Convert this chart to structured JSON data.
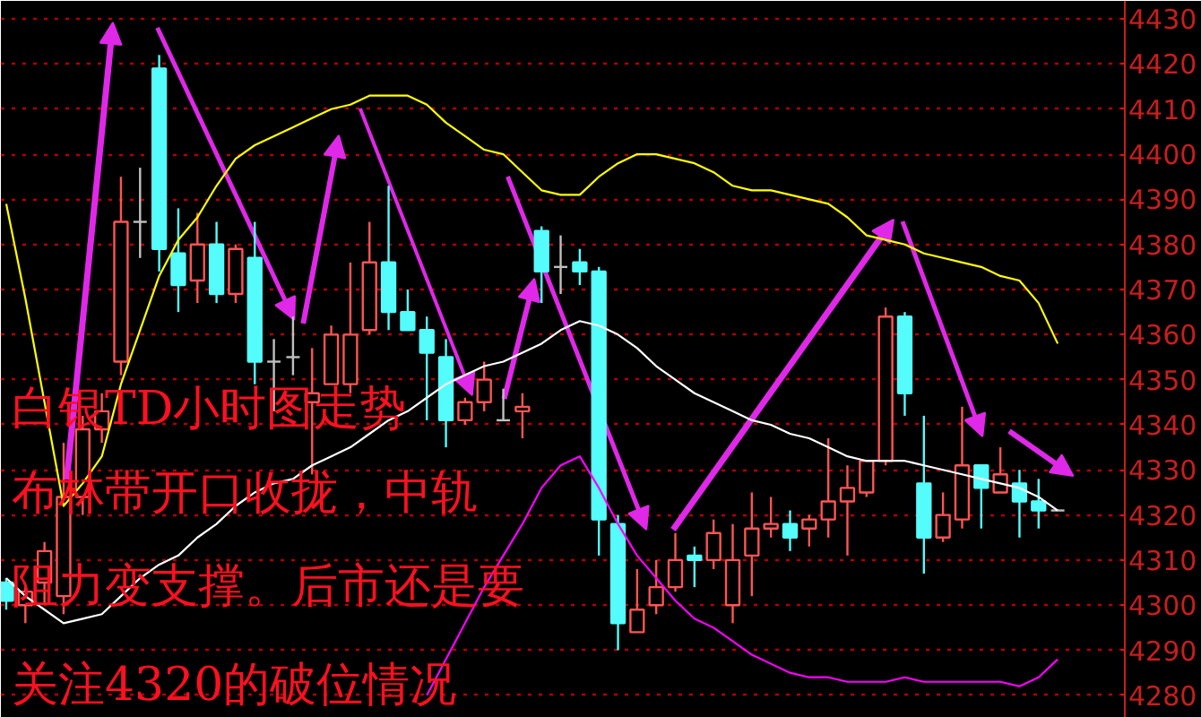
{
  "chart_data": {
    "type": "candlestick",
    "annotations": [
      "白银TD小时图走势",
      "布林带开口收拢，中轨",
      "阻力变支撑。后市还是要",
      "关注4320的破位情况"
    ],
    "categories": [
      null,
      null,
      null,
      null,
      null,
      null,
      null,
      null,
      null,
      null,
      null,
      null,
      null,
      null,
      null,
      null,
      null,
      null,
      null,
      null,
      null,
      null,
      null,
      null,
      null,
      null,
      null,
      null,
      null,
      null,
      null,
      null,
      null,
      null,
      null,
      null,
      null,
      null,
      null,
      null,
      null,
      null,
      null,
      null,
      null,
      null,
      null,
      null,
      null,
      null,
      null,
      null,
      null,
      null,
      null,
      null
    ],
    "ohlc": [
      [
        4305,
        4306,
        4299,
        4301
      ],
      [
        4300,
        4304,
        4296,
        4303
      ],
      [
        4305,
        4314,
        4300,
        4312
      ],
      [
        4302,
        4336,
        4298,
        4324
      ],
      [
        4324,
        4342,
        4320,
        4339
      ],
      [
        4339,
        4347,
        4336,
        4343
      ],
      [
        4354,
        4395,
        4351,
        4385
      ],
      [
        4385,
        4397,
        4377,
        4385
      ],
      [
        4419,
        4422,
        4374,
        4379
      ],
      [
        4378,
        4388,
        4365,
        4371
      ],
      [
        4372,
        4387,
        4367,
        4380
      ],
      [
        4380,
        4385,
        4367,
        4369
      ],
      [
        4369,
        4380,
        4367,
        4379
      ],
      [
        4377,
        4385,
        4349,
        4354
      ],
      [
        4354,
        4359,
        4343,
        4354
      ],
      [
        4355,
        4364,
        4351,
        4355
      ],
      [
        4345,
        4357,
        4329,
        4347
      ],
      [
        4349,
        4362,
        4349,
        4360
      ],
      [
        4349,
        4376,
        4347,
        4360
      ],
      [
        4361,
        4385,
        4360,
        4376
      ],
      [
        4376,
        4393,
        4361,
        4365
      ],
      [
        4365,
        4370,
        4361,
        4361
      ],
      [
        4361,
        4364,
        4341,
        4356
      ],
      [
        4355,
        4359,
        4335,
        4341
      ],
      [
        4341,
        4346,
        4340,
        4345
      ],
      [
        4345,
        4354,
        4343,
        4350
      ],
      [
        4341,
        4348,
        4341,
        4341
      ],
      [
        4343,
        4347,
        4337,
        4344
      ],
      [
        4383,
        4384,
        4367,
        4374
      ],
      [
        4375,
        4382,
        4369,
        4375
      ],
      [
        4376,
        4379,
        4371,
        4374
      ],
      [
        4374,
        4375,
        4311,
        4319
      ],
      [
        4318,
        4320,
        4290,
        4296
      ],
      [
        4294,
        4308,
        4294,
        4299
      ],
      [
        4300,
        4310,
        4298,
        4304
      ],
      [
        4304,
        4316,
        4303,
        4310
      ],
      [
        4311,
        4313,
        4304,
        4310
      ],
      [
        4310,
        4319,
        4308,
        4316
      ],
      [
        4300,
        4318,
        4296,
        4310
      ],
      [
        4311,
        4325,
        4302,
        4317
      ],
      [
        4317,
        4324,
        4315,
        4318
      ],
      [
        4318,
        4321,
        4312,
        4315
      ],
      [
        4317,
        4320,
        4313,
        4319
      ],
      [
        4319,
        4337,
        4315,
        4323
      ],
      [
        4323,
        4331,
        4311,
        4326
      ],
      [
        4325,
        4332,
        4324,
        4332
      ],
      [
        4332,
        4366,
        4331,
        4364
      ],
      [
        4364,
        4365,
        4342,
        4347
      ],
      [
        4327,
        4342,
        4307,
        4315
      ],
      [
        4315,
        4325,
        4314,
        4320
      ],
      [
        4319,
        4344,
        4317,
        4331
      ],
      [
        4331,
        4331,
        4317,
        4326
      ],
      [
        4325,
        4335,
        4325,
        4329
      ],
      [
        4327,
        4330,
        4315,
        4323
      ],
      [
        4323,
        4328,
        4317,
        4321
      ],
      [
        4321,
        4321,
        4321,
        4321
      ]
    ],
    "colors": [
      "#54fcfc",
      "#ff5454",
      "#ff5454",
      "#ff5454",
      "#ff5454",
      "#ff5454",
      "#ff5454",
      "#c0c0c0",
      "#54fcfc",
      "#54fcfc",
      "#ff5454",
      "#54fcfc",
      "#ff5454",
      "#54fcfc",
      "#c0c0c0",
      "#c0c0c0",
      "#ff5454",
      "#ff5454",
      "#ff5454",
      "#ff5454",
      "#54fcfc",
      "#54fcfc",
      "#54fcfc",
      "#54fcfc",
      "#ff5454",
      "#ff5454",
      "#c0c0c0",
      "#ff5454",
      "#54fcfc",
      "#c0c0c0",
      "#54fcfc",
      "#54fcfc",
      "#54fcfc",
      "#ff5454",
      "#ff5454",
      "#ff5454",
      "#54fcfc",
      "#ff5454",
      "#ff5454",
      "#ff5454",
      "#ff5454",
      "#54fcfc",
      "#ff5454",
      "#ff5454",
      "#ff5454",
      "#ff5454",
      "#ff5454",
      "#54fcfc",
      "#54fcfc",
      "#ff5454",
      "#ff5454",
      "#54fcfc",
      "#ff5454",
      "#54fcfc",
      "#54fcfc",
      "#c0c0c0"
    ],
    "series": [
      {
        "type": "line",
        "color": "#ffff00",
        "values": [
          4389,
          4368,
          4345,
          4322,
          4327,
          4333,
          4349,
          4361,
          4373,
          4381,
          4386,
          4393,
          4399,
          4402,
          4404,
          4406,
          4408,
          4410,
          4411,
          4413,
          4413,
          4413,
          4411,
          4407,
          4404,
          4401,
          4400,
          4396,
          4392,
          4391,
          4391,
          4395,
          4398,
          4400,
          4400,
          4399,
          4398,
          4396,
          4393,
          4392,
          4392,
          4391,
          4390,
          4389,
          4386,
          4382,
          4381,
          4380,
          4378,
          4377,
          4376,
          4375,
          4373,
          4372,
          4367,
          4358
        ]
      },
      {
        "type": "line",
        "color": "#ffffff",
        "values": [
          4306,
          4302,
          4299,
          4296,
          4297,
          4298,
          4302,
          4306,
          4309,
          4311,
          4315,
          4318,
          4322,
          4325,
          4327,
          4328,
          4331,
          4333,
          4335,
          4338,
          4341,
          4343,
          4346,
          4349,
          4351,
          4353,
          4354,
          4356,
          4358,
          4361,
          4363,
          4362,
          4360,
          4357,
          4353,
          4350,
          4347,
          4345,
          4343,
          4341,
          4340,
          4338,
          4337,
          4335,
          4333,
          4332,
          4332,
          4332,
          4331,
          4330,
          4329,
          4328,
          4327,
          4326,
          4324,
          4321
        ]
      },
      {
        "type": "line",
        "color": "#ff00ff",
        "values": [
          null,
          null,
          null,
          null,
          null,
          null,
          null,
          null,
          null,
          null,
          null,
          null,
          null,
          null,
          null,
          null,
          null,
          null,
          null,
          null,
          null,
          null,
          4280,
          4288,
          4296,
          4304,
          4311,
          4318,
          4326,
          4331,
          4333,
          4326,
          4318,
          4311,
          4306,
          4301,
          4297,
          4295,
          4292,
          4289,
          4287,
          4285,
          4284,
          4284,
          4283,
          4283,
          4283,
          4284,
          4283,
          4283,
          4283,
          4283,
          4283,
          4282,
          4284,
          4288
        ]
      }
    ],
    "ylim": [
      4275,
      4434
    ],
    "yticks": [
      4280,
      4290,
      4300,
      4310,
      4320,
      4330,
      4340,
      4350,
      4360,
      4370,
      4380,
      4390,
      4400,
      4410,
      4420,
      4430
    ],
    "grid": "y",
    "tick_labels": "y"
  }
}
